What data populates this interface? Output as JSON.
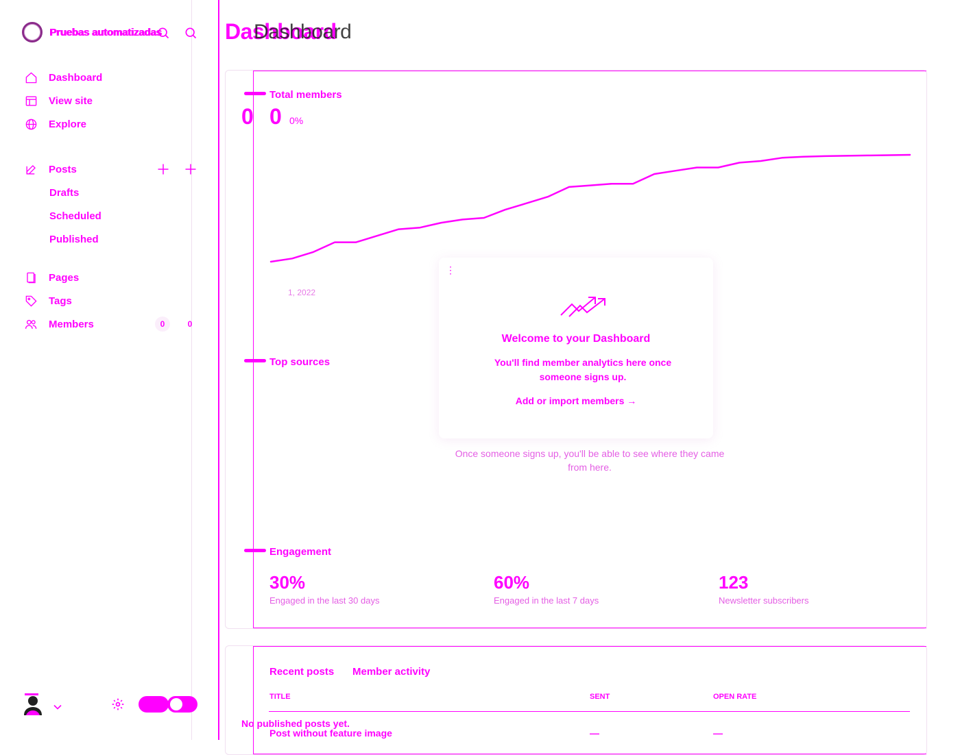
{
  "sidebar": {
    "brand": "Pruebas automatizadas",
    "nav": [
      {
        "label": "Dashboard"
      },
      {
        "label": "View site"
      },
      {
        "label": "Explore"
      }
    ],
    "posts": {
      "label": "Posts",
      "sub": [
        "Drafts",
        "Scheduled",
        "Published"
      ]
    },
    "content": [
      {
        "label": "Pages"
      },
      {
        "label": "Tags"
      },
      {
        "label": "Members",
        "count": "0"
      }
    ]
  },
  "header": {
    "title": "Dashboard"
  },
  "total_members": {
    "label": "Total members",
    "value": "0",
    "change": "0%",
    "start_date": "1, 2022"
  },
  "chart_data": {
    "type": "line",
    "title": "Total members",
    "xlabel": "",
    "ylabel": "",
    "grid": false,
    "x": [
      0,
      1,
      2,
      3,
      4,
      5,
      6,
      7,
      8,
      9,
      10,
      11,
      12,
      13,
      14,
      15,
      16,
      17,
      18,
      19,
      20,
      21,
      22,
      23,
      24,
      25,
      26,
      27,
      28,
      29,
      30
    ],
    "series": [
      {
        "values": [
          0,
          1,
          3,
          6,
          6,
          8,
          10,
          10.5,
          12,
          13,
          13.5,
          16,
          18,
          20,
          23,
          23.5,
          24,
          24,
          27,
          28,
          29,
          29,
          30.5,
          31,
          32,
          32.3,
          32.5,
          32.6,
          32.7,
          32.8,
          32.9
        ]
      }
    ]
  },
  "welcome": {
    "title": "Welcome to your Dashboard",
    "desc": "You'll find member analytics here once someone signs up.",
    "cta": "Add or import members →",
    "dots": "⋮"
  },
  "top_sources": {
    "label": "Top sources",
    "empty": "Once someone signs up, you'll be able to see where they came from here."
  },
  "engagement": {
    "label": "Engagement",
    "items": [
      {
        "value": "30%",
        "caption": "Engaged in the last 30 days"
      },
      {
        "value": "60%",
        "caption": "Engaged in the last 7 days"
      },
      {
        "value": "123",
        "caption": "Newsletter subscribers"
      }
    ]
  },
  "recent": {
    "tabs": [
      "Recent posts",
      "Member activity"
    ],
    "columns": [
      "TITLE",
      "SENT",
      "OPEN RATE"
    ],
    "rows": [
      {
        "title": "Post without feature image",
        "sent": "—",
        "open_rate": "—"
      }
    ],
    "empty": "No published posts yet."
  }
}
